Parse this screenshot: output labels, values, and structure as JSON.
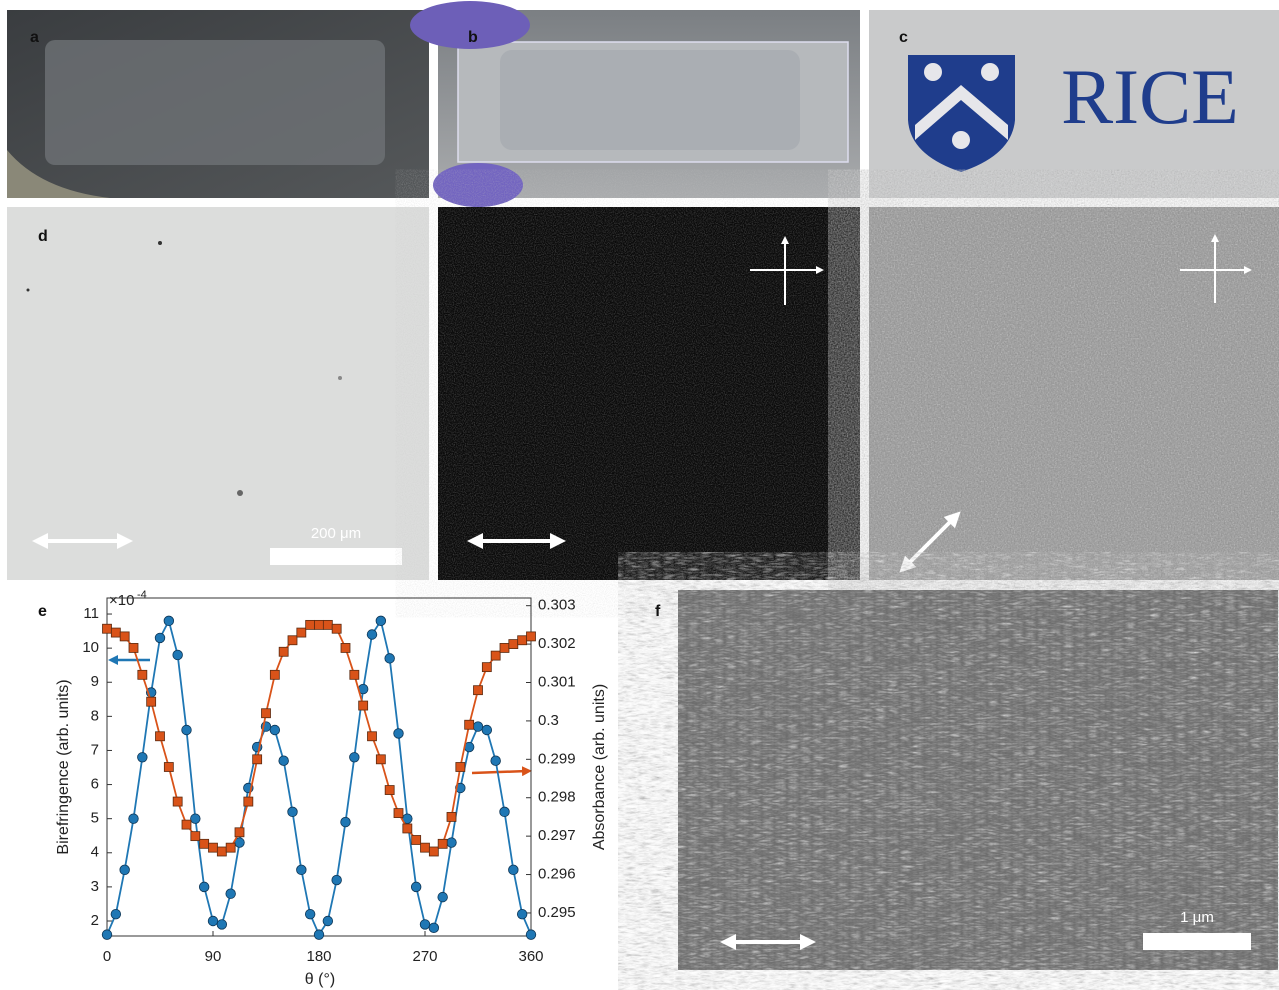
{
  "panel_labels": {
    "a": "a",
    "b": "b",
    "c": "c",
    "d": "d",
    "e": "e",
    "f": "f"
  },
  "photo_c": {
    "logo_text": "RICE"
  },
  "scale_bars": {
    "d": "200 μm",
    "f": "1 μm"
  },
  "chart_data": {
    "type": "line",
    "markers": true,
    "x": [
      0,
      7.5,
      15,
      22.5,
      30,
      37.5,
      45,
      52.5,
      60,
      67.5,
      75,
      82.5,
      90,
      97.5,
      105,
      112.5,
      120,
      127.5,
      135,
      142.5,
      150,
      157.5,
      165,
      172.5,
      180,
      187.5,
      195,
      202.5,
      210,
      217.5,
      225,
      232.5,
      240,
      247.5,
      255,
      262.5,
      270,
      277.5,
      285,
      292.5,
      300,
      307.5,
      315,
      322.5,
      330,
      337.5,
      345,
      352.5,
      360
    ],
    "series": [
      {
        "color": "#1f77b4",
        "marker": "circle",
        "values": [
          1.6,
          2.2,
          3.5,
          5.0,
          6.8,
          8.7,
          10.3,
          10.8,
          9.8,
          7.6,
          5.0,
          3.0,
          2.0,
          1.9,
          2.8,
          4.3,
          5.9,
          7.1,
          7.7,
          7.6,
          6.7,
          5.2,
          3.5,
          2.2,
          1.6,
          2.0,
          3.2,
          4.9,
          6.8,
          8.8,
          10.4,
          10.8,
          9.7,
          7.5,
          5.0,
          3.0,
          1.9,
          1.8,
          2.7,
          4.3,
          5.9,
          7.1,
          7.7,
          7.6,
          6.7,
          5.2,
          3.5,
          2.2,
          1.6
        ]
      },
      {
        "color": "#d95319",
        "marker": "square",
        "axis": "y2",
        "values": [
          0.3024,
          0.3023,
          0.3022,
          0.3019,
          0.3012,
          0.3005,
          0.2996,
          0.2988,
          0.2979,
          0.2973,
          0.297,
          0.2968,
          0.2967,
          0.2966,
          0.2967,
          0.2971,
          0.2979,
          0.299,
          0.3002,
          0.3012,
          0.3018,
          0.3021,
          0.3023,
          0.3025,
          0.3025,
          0.3025,
          0.3024,
          0.3019,
          0.3012,
          0.3004,
          0.2996,
          0.299,
          0.2982,
          0.2976,
          0.2972,
          0.2969,
          0.2967,
          0.2966,
          0.2968,
          0.2975,
          0.2988,
          0.2999,
          0.3008,
          0.3014,
          0.3017,
          0.3019,
          0.302,
          0.3021,
          0.3022
        ]
      }
    ],
    "xlim": [
      0,
      360
    ],
    "xticks": [
      0,
      90,
      180,
      270,
      360
    ],
    "ylim": [
      1.56,
      11.47
    ],
    "yticks": [
      2,
      3,
      4,
      5,
      6,
      7,
      8,
      9,
      10,
      11
    ],
    "y2lim": [
      0.2944,
      0.3032
    ],
    "y2ticks": [
      0.295,
      0.296,
      0.297,
      0.298,
      0.299,
      0.3,
      0.301,
      0.302,
      0.303
    ],
    "y_scale_label": {
      "base": "×10",
      "exponent": "-4"
    },
    "x_label": "θ (°)",
    "y_label": "Birefringence (arb. units)",
    "y2_label": "Absorbance (arb. units)"
  }
}
